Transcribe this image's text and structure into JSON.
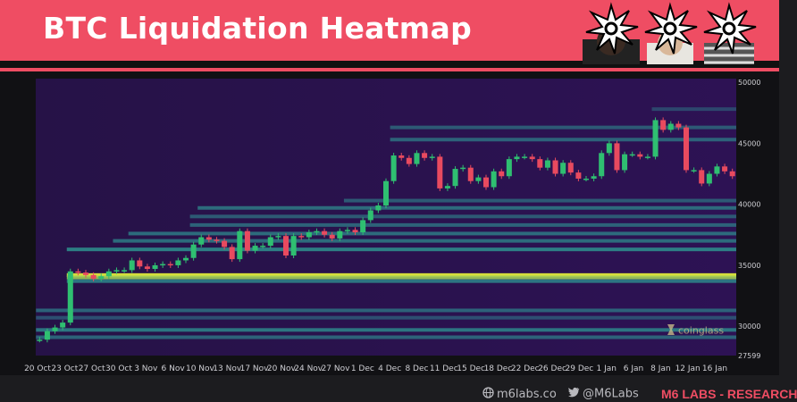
{
  "header": {
    "title": "BTC Liquidation Heatmap"
  },
  "footer": {
    "website": "m6labs.co",
    "twitter": "@M6Labs",
    "brand": "M6 LABS - RESEARCH"
  },
  "watermark": "coinglass",
  "colors": {
    "banner": "#ef4d63",
    "heat_low": "#2b0f55",
    "heat_mid": "#2e8b8b",
    "heat_high": "#e8f53a",
    "candle_up": "#2fbf71",
    "candle_down": "#e84a5f"
  },
  "chart_data": {
    "type": "heatmap",
    "title": "BTC Liquidation Heatmap",
    "x_tick_labels": [
      "20 Oct",
      "23 Oct",
      "27 Oct",
      "30 Oct",
      "3 Nov",
      "6 Nov",
      "10 Nov",
      "13 Nov",
      "17 Nov",
      "20 Nov",
      "24 Nov",
      "27 Nov",
      "1 Dec",
      "4 Dec",
      "8 Dec",
      "11 Dec",
      "15 Dec",
      "18 Dec",
      "22 Dec",
      "26 Dec",
      "29 Dec",
      "1 Jan",
      "6 Jan",
      "8 Jan",
      "12 Jan",
      "16 Jan"
    ],
    "y_tick_labels": [
      "50000",
      "45000",
      "40000",
      "35000",
      "30000",
      "27599"
    ],
    "y_ticks": [
      50000,
      45000,
      40000,
      35000,
      30000,
      27599
    ],
    "ylim": [
      27599,
      50300
    ],
    "price_series": [
      {
        "date": "20 Oct",
        "price": 28900
      },
      {
        "date": "21 Oct",
        "price": 29600
      },
      {
        "date": "22 Oct",
        "price": 29900
      },
      {
        "date": "23 Oct",
        "price": 30300
      },
      {
        "date": "24 Oct",
        "price": 34500
      },
      {
        "date": "25 Oct",
        "price": 34400
      },
      {
        "date": "26 Oct",
        "price": 34200
      },
      {
        "date": "27 Oct",
        "price": 33900
      },
      {
        "date": "28 Oct",
        "price": 34100
      },
      {
        "date": "29 Oct",
        "price": 34500
      },
      {
        "date": "30 Oct",
        "price": 34600
      },
      {
        "date": "31 Oct",
        "price": 34600
      },
      {
        "date": "1 Nov",
        "price": 35400
      },
      {
        "date": "2 Nov",
        "price": 34900
      },
      {
        "date": "3 Nov",
        "price": 34700
      },
      {
        "date": "4 Nov",
        "price": 35000
      },
      {
        "date": "5 Nov",
        "price": 35100
      },
      {
        "date": "6 Nov",
        "price": 35000
      },
      {
        "date": "7 Nov",
        "price": 35400
      },
      {
        "date": "8 Nov",
        "price": 35600
      },
      {
        "date": "9 Nov",
        "price": 36700
      },
      {
        "date": "10 Nov",
        "price": 37300
      },
      {
        "date": "11 Nov",
        "price": 37100
      },
      {
        "date": "12 Nov",
        "price": 37000
      },
      {
        "date": "13 Nov",
        "price": 36500
      },
      {
        "date": "14 Nov",
        "price": 35500
      },
      {
        "date": "15 Nov",
        "price": 37800
      },
      {
        "date": "16 Nov",
        "price": 36200
      },
      {
        "date": "17 Nov",
        "price": 36600
      },
      {
        "date": "18 Nov",
        "price": 36600
      },
      {
        "date": "19 Nov",
        "price": 37300
      },
      {
        "date": "20 Nov",
        "price": 37400
      },
      {
        "date": "21 Nov",
        "price": 35800
      },
      {
        "date": "22 Nov",
        "price": 37400
      },
      {
        "date": "23 Nov",
        "price": 37300
      },
      {
        "date": "24 Nov",
        "price": 37700
      },
      {
        "date": "25 Nov",
        "price": 37800
      },
      {
        "date": "26 Nov",
        "price": 37500
      },
      {
        "date": "27 Nov",
        "price": 37200
      },
      {
        "date": "28 Nov",
        "price": 37800
      },
      {
        "date": "29 Nov",
        "price": 37900
      },
      {
        "date": "30 Nov",
        "price": 37700
      },
      {
        "date": "1 Dec",
        "price": 38700
      },
      {
        "date": "2 Dec",
        "price": 39500
      },
      {
        "date": "3 Dec",
        "price": 39900
      },
      {
        "date": "4 Dec",
        "price": 41900
      },
      {
        "date": "5 Dec",
        "price": 44000
      },
      {
        "date": "6 Dec",
        "price": 43800
      },
      {
        "date": "7 Dec",
        "price": 43300
      },
      {
        "date": "8 Dec",
        "price": 44200
      },
      {
        "date": "9 Dec",
        "price": 43800
      },
      {
        "date": "10 Dec",
        "price": 43900
      },
      {
        "date": "11 Dec",
        "price": 41300
      },
      {
        "date": "12 Dec",
        "price": 41500
      },
      {
        "date": "13 Dec",
        "price": 42900
      },
      {
        "date": "14 Dec",
        "price": 43000
      },
      {
        "date": "15 Dec",
        "price": 41900
      },
      {
        "date": "16 Dec",
        "price": 42200
      },
      {
        "date": "17 Dec",
        "price": 41400
      },
      {
        "date": "18 Dec",
        "price": 42700
      },
      {
        "date": "19 Dec",
        "price": 42300
      },
      {
        "date": "20 Dec",
        "price": 43700
      },
      {
        "date": "21 Dec",
        "price": 43900
      },
      {
        "date": "22 Dec",
        "price": 43900
      },
      {
        "date": "23 Dec",
        "price": 43700
      },
      {
        "date": "24 Dec",
        "price": 43000
      },
      {
        "date": "25 Dec",
        "price": 43600
      },
      {
        "date": "26 Dec",
        "price": 42500
      },
      {
        "date": "27 Dec",
        "price": 43400
      },
      {
        "date": "28 Dec",
        "price": 42600
      },
      {
        "date": "29 Dec",
        "price": 42100
      },
      {
        "date": "30 Dec",
        "price": 42100
      },
      {
        "date": "31 Dec",
        "price": 42300
      },
      {
        "date": "1 Jan",
        "price": 44200
      },
      {
        "date": "2 Jan",
        "price": 45000
      },
      {
        "date": "3 Jan",
        "price": 42800
      },
      {
        "date": "4 Jan",
        "price": 44100
      },
      {
        "date": "5 Jan",
        "price": 44100
      },
      {
        "date": "6 Jan",
        "price": 43900
      },
      {
        "date": "7 Jan",
        "price": 43900
      },
      {
        "date": "8 Jan",
        "price": 46900
      },
      {
        "date": "9 Jan",
        "price": 46100
      },
      {
        "date": "10 Jan",
        "price": 46600
      },
      {
        "date": "11 Jan",
        "price": 46300
      },
      {
        "date": "12 Jan",
        "price": 42800
      },
      {
        "date": "13 Jan",
        "price": 42800
      },
      {
        "date": "14 Jan",
        "price": 41700
      },
      {
        "date": "15 Jan",
        "price": 42500
      },
      {
        "date": "16 Jan",
        "price": 43100
      },
      {
        "date": "17 Jan",
        "price": 42700
      },
      {
        "date": "18 Jan",
        "price": 42300
      }
    ],
    "liquidation_bands": [
      {
        "price": 34200,
        "intensity": 1.0
      },
      {
        "price": 34000,
        "intensity": 0.85
      },
      {
        "price": 33700,
        "intensity": 0.55
      },
      {
        "price": 36300,
        "intensity": 0.6
      },
      {
        "price": 37000,
        "intensity": 0.5
      },
      {
        "price": 37600,
        "intensity": 0.5
      },
      {
        "price": 38300,
        "intensity": 0.45
      },
      {
        "price": 39000,
        "intensity": 0.4
      },
      {
        "price": 39700,
        "intensity": 0.5
      },
      {
        "price": 31300,
        "intensity": 0.45
      },
      {
        "price": 30700,
        "intensity": 0.35
      },
      {
        "price": 29700,
        "intensity": 0.55
      },
      {
        "price": 29100,
        "intensity": 0.45
      },
      {
        "price": 40300,
        "intensity": 0.4
      },
      {
        "price": 45300,
        "intensity": 0.45
      },
      {
        "price": 46300,
        "intensity": 0.4
      },
      {
        "price": 47800,
        "intensity": 0.3
      }
    ]
  }
}
